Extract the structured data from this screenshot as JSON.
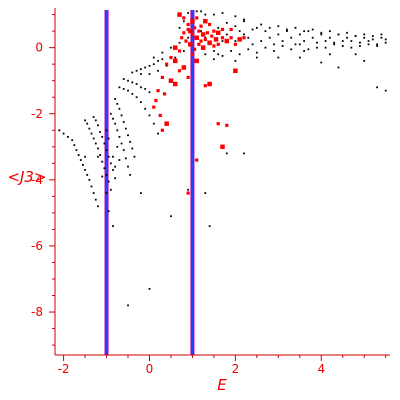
{
  "colors": {
    "axis": "#cc0000",
    "label": "#ee0000",
    "background_points": "#000000",
    "highlight_points": "#ff0000",
    "vline_outer": "#b400b4",
    "vline_inner": "#3040ff"
  },
  "chart_data": {
    "type": "scatter",
    "title": "",
    "xlabel": "E",
    "ylabel": "<J3>",
    "xlim": [
      -2.2,
      5.6
    ],
    "ylim": [
      -9.3,
      1.2
    ],
    "grid": false,
    "x_ticks": [
      {
        "value": -2,
        "label": "-2"
      },
      {
        "value": 0,
        "label": "0"
      },
      {
        "value": 2,
        "label": "2"
      },
      {
        "value": 4,
        "label": "4"
      }
    ],
    "y_ticks": [
      {
        "value": 0,
        "label": "0"
      },
      {
        "value": -2,
        "label": "-2"
      },
      {
        "value": -4,
        "label": "-4"
      },
      {
        "value": -6,
        "label": "-6"
      },
      {
        "value": -8,
        "label": "-8"
      }
    ],
    "vertical_lines": [
      {
        "x": -1.0
      },
      {
        "x": 1.0
      }
    ],
    "series": [
      {
        "style": "small-black-dots",
        "points": [
          [
            -2.1,
            -2.5
          ],
          [
            -2.0,
            -2.6
          ],
          [
            -1.9,
            -2.7
          ],
          [
            -1.8,
            -2.8
          ],
          [
            -1.75,
            -2.95
          ],
          [
            -1.7,
            -3.1
          ],
          [
            -1.65,
            -3.25
          ],
          [
            -1.6,
            -3.4
          ],
          [
            -1.55,
            -3.55
          ],
          [
            -1.5,
            -3.7
          ],
          [
            -1.45,
            -3.85
          ],
          [
            -1.4,
            -4.0
          ],
          [
            -1.35,
            -4.2
          ],
          [
            -1.3,
            -4.4
          ],
          [
            -1.25,
            -4.6
          ],
          [
            -1.2,
            -4.8
          ],
          [
            -1.5,
            -2.2
          ],
          [
            -1.45,
            -2.3
          ],
          [
            -1.4,
            -2.45
          ],
          [
            -1.35,
            -2.6
          ],
          [
            -1.3,
            -2.75
          ],
          [
            -1.25,
            -2.9
          ],
          [
            -1.2,
            -3.05
          ],
          [
            -1.15,
            -3.25
          ],
          [
            -1.1,
            -3.45
          ],
          [
            -1.05,
            -3.65
          ],
          [
            -1.0,
            -3.85
          ],
          [
            -0.95,
            -4.05
          ],
          [
            -0.9,
            -4.3
          ],
          [
            -1.3,
            -2.1
          ],
          [
            -1.25,
            -2.2
          ],
          [
            -1.2,
            -2.35
          ],
          [
            -1.15,
            -2.55
          ],
          [
            -1.1,
            -2.7
          ],
          [
            -1.05,
            -2.9
          ],
          [
            -1.0,
            -3.1
          ],
          [
            -0.95,
            -3.3
          ],
          [
            -0.9,
            -3.5
          ],
          [
            -0.85,
            -3.7
          ],
          [
            -0.8,
            -3.95
          ],
          [
            -0.9,
            -2.0
          ],
          [
            -0.85,
            -2.15
          ],
          [
            -0.8,
            -2.3
          ],
          [
            -0.75,
            -2.5
          ],
          [
            -0.7,
            -2.7
          ],
          [
            -0.65,
            -2.9
          ],
          [
            -0.6,
            -3.1
          ],
          [
            -0.55,
            -3.35
          ],
          [
            -0.5,
            -3.6
          ],
          [
            -0.45,
            -3.85
          ],
          [
            -0.8,
            -1.55
          ],
          [
            -0.75,
            -1.7
          ],
          [
            -0.7,
            -1.85
          ],
          [
            -0.65,
            -2.05
          ],
          [
            -0.6,
            -2.25
          ],
          [
            -0.55,
            -2.45
          ],
          [
            -0.5,
            -2.65
          ],
          [
            -0.45,
            -2.85
          ],
          [
            -0.4,
            -3.05
          ],
          [
            -0.35,
            -3.3
          ],
          [
            -0.7,
            -1.2
          ],
          [
            -0.6,
            -1.25
          ],
          [
            -0.5,
            -1.3
          ],
          [
            -0.4,
            -1.4
          ],
          [
            -0.3,
            -1.5
          ],
          [
            -0.2,
            -1.65
          ],
          [
            -0.1,
            -1.85
          ],
          [
            0.0,
            -2.05
          ],
          [
            0.1,
            -2.3
          ],
          [
            0.2,
            -2.6
          ],
          [
            -0.6,
            -0.95
          ],
          [
            -0.5,
            -1.0
          ],
          [
            -0.4,
            -1.05
          ],
          [
            -0.3,
            -1.1
          ],
          [
            -0.2,
            -1.2
          ],
          [
            -0.1,
            -1.25
          ],
          [
            0.0,
            -1.35
          ],
          [
            -0.4,
            -0.75
          ],
          [
            -0.3,
            -0.7
          ],
          [
            -0.2,
            -0.65
          ],
          [
            -0.1,
            -0.6
          ],
          [
            0.0,
            -0.55
          ],
          [
            0.1,
            -0.5
          ],
          [
            0.2,
            -0.4
          ],
          [
            0.3,
            -0.35
          ],
          [
            -0.2,
            -0.8
          ],
          [
            0.0,
            -0.8
          ],
          [
            0.2,
            -0.7
          ],
          [
            0.4,
            -0.55
          ],
          [
            0.6,
            -0.3
          ],
          [
            0.8,
            -0.1
          ],
          [
            0.1,
            -0.3
          ],
          [
            0.3,
            -0.15
          ],
          [
            0.5,
            0.0
          ],
          [
            0.7,
            0.15
          ],
          [
            0.9,
            0.3
          ],
          [
            -1.0,
            -2.5
          ],
          [
            -0.95,
            -2.75
          ],
          [
            -0.85,
            -3.3
          ],
          [
            -0.8,
            -3.6
          ],
          [
            -0.75,
            -3.0
          ],
          [
            -0.7,
            -3.4
          ],
          [
            -1.2,
            -3.3
          ],
          [
            -1.1,
            -3.9
          ],
          [
            -1.0,
            -4.4
          ],
          [
            -0.85,
            -5.4
          ],
          [
            -0.2,
            -4.4
          ],
          [
            0.5,
            -5.1
          ],
          [
            1.4,
            -5.4
          ],
          [
            1.8,
            -3.2
          ],
          [
            2.2,
            -3.2
          ],
          [
            1.3,
            -4.4
          ],
          [
            0.9,
            -4.3
          ],
          [
            -0.5,
            -7.8
          ],
          [
            0.0,
            -7.3
          ],
          [
            -1.5,
            -3.3
          ],
          [
            -0.95,
            -4.95
          ],
          [
            1.2,
            0.5
          ],
          [
            1.3,
            0.3
          ],
          [
            1.4,
            0.1
          ],
          [
            1.5,
            -0.1
          ],
          [
            1.6,
            -0.2
          ],
          [
            1.7,
            0.2
          ],
          [
            1.8,
            0.4
          ],
          [
            1.9,
            0.3
          ],
          [
            2.0,
            0.2
          ],
          [
            2.1,
            0.5
          ],
          [
            2.2,
            0.4
          ],
          [
            2.3,
            0.3
          ],
          [
            2.4,
            0.1
          ],
          [
            2.5,
            0.6
          ],
          [
            2.6,
            0.2
          ],
          [
            2.7,
            0.5
          ],
          [
            2.8,
            0.3
          ],
          [
            2.9,
            0.1
          ],
          [
            3.0,
            0.4
          ],
          [
            3.1,
            0.2
          ],
          [
            3.2,
            0.5
          ],
          [
            3.3,
            0.3
          ],
          [
            3.4,
            0.1
          ],
          [
            3.5,
            0.4
          ],
          [
            3.6,
            0.2
          ],
          [
            3.7,
            0.5
          ],
          [
            3.8,
            0.3
          ],
          [
            3.9,
            0.0
          ],
          [
            4.0,
            0.4
          ],
          [
            4.1,
            0.2
          ],
          [
            4.2,
            0.3
          ],
          [
            4.3,
            0.1
          ],
          [
            4.4,
            0.4
          ],
          [
            4.5,
            0.2
          ],
          [
            4.6,
            0.3
          ],
          [
            4.7,
            0.0
          ],
          [
            4.8,
            0.35
          ],
          [
            4.9,
            0.15
          ],
          [
            5.0,
            0.3
          ],
          [
            5.1,
            0.1
          ],
          [
            5.2,
            0.25
          ],
          [
            5.3,
            0.05
          ],
          [
            5.4,
            0.3
          ],
          [
            5.5,
            0.15
          ],
          [
            1.3,
            -0.2
          ],
          [
            1.5,
            -0.35
          ],
          [
            1.7,
            -0.25
          ],
          [
            1.9,
            -0.1
          ],
          [
            2.1,
            -0.2
          ],
          [
            2.3,
            -0.05
          ],
          [
            2.5,
            -0.15
          ],
          [
            2.7,
            0.0
          ],
          [
            2.9,
            -0.1
          ],
          [
            3.1,
            0.05
          ],
          [
            3.3,
            -0.05
          ],
          [
            3.5,
            0.1
          ],
          [
            3.7,
            -0.05
          ],
          [
            3.9,
            0.15
          ],
          [
            4.1,
            0.0
          ],
          [
            4.3,
            0.15
          ],
          [
            4.5,
            0.05
          ],
          [
            4.7,
            0.2
          ],
          [
            4.9,
            0.05
          ],
          [
            5.1,
            0.2
          ],
          [
            5.3,
            0.1
          ],
          [
            5.5,
            0.25
          ],
          [
            1.4,
            0.7
          ],
          [
            1.6,
            0.6
          ],
          [
            1.8,
            0.75
          ],
          [
            2.0,
            0.65
          ],
          [
            2.2,
            0.8
          ],
          [
            2.4,
            0.55
          ],
          [
            2.6,
            0.7
          ],
          [
            2.8,
            0.6
          ],
          [
            3.0,
            0.65
          ],
          [
            3.2,
            0.55
          ],
          [
            3.4,
            0.6
          ],
          [
            3.6,
            0.5
          ],
          [
            3.8,
            0.55
          ],
          [
            4.0,
            0.45
          ],
          [
            4.2,
            0.5
          ],
          [
            4.4,
            0.4
          ],
          [
            4.6,
            0.45
          ],
          [
            4.8,
            0.35
          ],
          [
            5.0,
            0.4
          ],
          [
            5.2,
            0.35
          ],
          [
            5.4,
            0.4
          ],
          [
            1.5,
            1.0
          ],
          [
            1.7,
            1.05
          ],
          [
            2.0,
            0.95
          ],
          [
            2.2,
            0.85
          ],
          [
            1.3,
            1.0
          ],
          [
            2.0,
            -0.4
          ],
          [
            2.5,
            -0.3
          ],
          [
            3.0,
            -0.3
          ],
          [
            3.5,
            -0.3
          ],
          [
            4.0,
            -0.45
          ],
          [
            4.4,
            -0.6
          ],
          [
            4.8,
            -0.2
          ],
          [
            5.3,
            -1.2
          ],
          [
            5.5,
            -1.3
          ],
          [
            5.0,
            -0.4
          ],
          [
            3.6,
            -0.1
          ],
          [
            4.2,
            -0.2
          ],
          [
            0.7,
            0.6
          ],
          [
            0.8,
            0.8
          ],
          [
            0.9,
            1.05
          ],
          [
            1.0,
            0.85
          ],
          [
            1.1,
            1.1
          ],
          [
            1.2,
            1.1
          ]
        ]
      },
      {
        "style": "red-markers",
        "points": [
          [
            0.7,
            1.0
          ],
          [
            0.8,
            0.9
          ],
          [
            0.9,
            0.7
          ],
          [
            0.95,
            0.5
          ],
          [
            1.0,
            0.4
          ],
          [
            1.05,
            0.6
          ],
          [
            1.1,
            0.3
          ],
          [
            1.15,
            0.5
          ],
          [
            1.2,
            0.2
          ],
          [
            1.25,
            0.4
          ],
          [
            1.3,
            0.25
          ],
          [
            1.35,
            0.45
          ],
          [
            1.4,
            0.15
          ],
          [
            1.45,
            0.35
          ],
          [
            1.5,
            0.05
          ],
          [
            1.55,
            0.25
          ],
          [
            1.6,
            0.1
          ],
          [
            1.7,
            0.3
          ],
          [
            1.8,
            0.2
          ],
          [
            1.9,
            0.3
          ],
          [
            2.0,
            0.1
          ],
          [
            2.1,
            0.25
          ],
          [
            0.75,
            0.3
          ],
          [
            0.85,
            0.2
          ],
          [
            0.95,
            0.1
          ],
          [
            1.05,
            -0.05
          ],
          [
            1.15,
            0.1
          ],
          [
            1.25,
            0.0
          ],
          [
            0.8,
            0.45
          ],
          [
            0.9,
            0.55
          ],
          [
            1.0,
            0.8
          ],
          [
            1.1,
            0.9
          ],
          [
            1.2,
            0.65
          ],
          [
            1.3,
            0.8
          ],
          [
            1.4,
            0.7
          ],
          [
            1.5,
            0.5
          ],
          [
            1.6,
            0.45
          ],
          [
            1.7,
            0.55
          ],
          [
            0.5,
            -0.3
          ],
          [
            0.6,
            -0.4
          ],
          [
            0.4,
            -0.5
          ],
          [
            0.3,
            -0.9
          ],
          [
            0.5,
            -1.0
          ],
          [
            0.2,
            -1.3
          ],
          [
            0.35,
            -1.4
          ],
          [
            0.6,
            -1.1
          ],
          [
            0.15,
            -1.6
          ],
          [
            0.1,
            -1.8
          ],
          [
            0.4,
            -2.3
          ],
          [
            0.3,
            -2.5
          ],
          [
            0.25,
            -2.05
          ],
          [
            0.8,
            -0.6
          ],
          [
            0.9,
            -0.9
          ],
          [
            1.3,
            -1.15
          ],
          [
            1.4,
            -1.1
          ],
          [
            0.7,
            -0.7
          ],
          [
            1.0,
            -0.2
          ],
          [
            1.1,
            -0.4
          ],
          [
            1.6,
            -2.3
          ],
          [
            1.8,
            -2.35
          ],
          [
            1.7,
            -3.0
          ],
          [
            0.9,
            -4.4
          ],
          [
            1.1,
            -3.4
          ],
          [
            0.6,
            0.0
          ],
          [
            0.7,
            -0.1
          ],
          [
            2.2,
            0.3
          ],
          [
            2.0,
            -0.7
          ],
          [
            1.9,
            0.55
          ]
        ]
      }
    ]
  }
}
